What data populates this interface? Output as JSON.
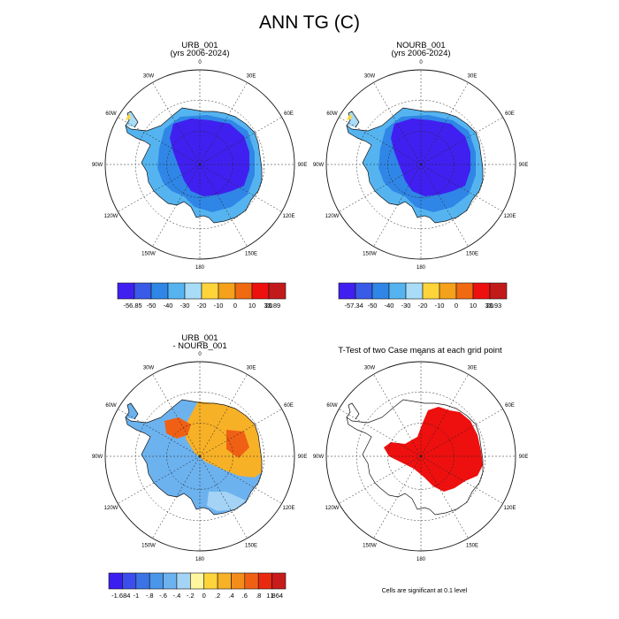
{
  "title": "ANN TG (C)",
  "panels": [
    {
      "id": "urb",
      "line1": "URB_001",
      "line2": "(yrs 2006-2024)"
    },
    {
      "id": "nourb",
      "line1": "NOURB_001",
      "line2": "(yrs 2006-2024)"
    },
    {
      "id": "diff",
      "line1": "URB_001",
      "line2": "- NOURB_001"
    },
    {
      "id": "ttest",
      "line1": "T-Test of two Case means at each grid point",
      "line2": ""
    }
  ],
  "lon_labels": [
    "0",
    "30E",
    "60E",
    "90E",
    "120E",
    "150E",
    "180",
    "150W",
    "120W",
    "90W",
    "60W",
    "30W"
  ],
  "colorbars": {
    "urb": {
      "labels": [
        "-56.85",
        "-50",
        "-40",
        "-30",
        "-20",
        "-10",
        "0",
        "10",
        "20",
        "33.89"
      ],
      "colors": [
        "#4020f0",
        "#3a5ae8",
        "#2f86e6",
        "#55b4f0",
        "#a8dcf7",
        "#ffd43b",
        "#f5a11b",
        "#f06a12",
        "#ee0f0f",
        "#c21a1a"
      ]
    },
    "nourb": {
      "labels": [
        "-57.34",
        "-50",
        "-40",
        "-30",
        "-20",
        "-10",
        "0",
        "10",
        "20",
        "33.93"
      ],
      "colors": [
        "#4020f0",
        "#3a5ae8",
        "#2f86e6",
        "#55b4f0",
        "#a8dcf7",
        "#ffd43b",
        "#f5a11b",
        "#f06a12",
        "#ee0f0f",
        "#c21a1a"
      ]
    },
    "diff": {
      "labels": [
        "-1.684",
        "-1",
        "-.8",
        "-.6",
        "-.4",
        "-.2",
        "0",
        ".2",
        ".4",
        ".6",
        ".8",
        "1",
        "1.864"
      ],
      "colors": [
        "#3a1ff0",
        "#3b4eec",
        "#3a74e6",
        "#4a96ea",
        "#6cb2ef",
        "#a4d3f5",
        "#fff7a0",
        "#ffd43b",
        "#f7b127",
        "#f48c1a",
        "#f06014",
        "#ea2a10",
        "#c81b1b"
      ]
    }
  },
  "footnote": "Cells are significant at 0.1 level",
  "colors": {
    "deep": "#4020f0",
    "mid": "#2f86e6",
    "light": "#55b4f0",
    "pale": "#a8dcf7",
    "sig": "#ee0f0f"
  }
}
